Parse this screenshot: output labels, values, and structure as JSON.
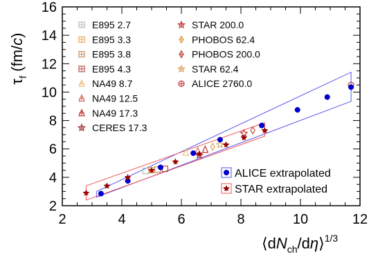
{
  "chart_data": {
    "type": "scatter",
    "title": "",
    "xlabel": "⟨dN_ch/dη⟩^(1/3)",
    "ylabel": "τ_f (fm/c)",
    "xlim": [
      2,
      12
    ],
    "ylim": [
      2,
      16
    ],
    "x_ticks": [
      "2",
      "4",
      "6",
      "8",
      "10",
      "12"
    ],
    "y_ticks": [
      "2",
      "4",
      "6",
      "8",
      "10",
      "12",
      "14",
      "16"
    ],
    "legend_top": [
      {
        "name": "E895 2.7",
        "marker": "open-square",
        "color": "#b8b8b8",
        "x": 4.8,
        "y": 4.45
      },
      {
        "name": "E895 3.3",
        "marker": "open-square",
        "color": "#e8a858",
        "x": 5.0,
        "y": 4.5
      },
      {
        "name": "E895 3.8",
        "marker": "open-square",
        "color": "#c89060",
        "x": 5.2,
        "y": 4.55
      },
      {
        "name": "E895 4.3",
        "marker": "open-square",
        "color": "#b85050",
        "x": 5.45,
        "y": 4.6
      },
      {
        "name": "NA49 8.7",
        "marker": "open-triangle",
        "color": "#f0c080",
        "x": 6.15,
        "y": 5.75
      },
      {
        "name": "NA49 12.5",
        "marker": "open-triangle",
        "color": "#d07060",
        "x": 6.55,
        "y": 5.85
      },
      {
        "name": "NA49 17.3",
        "marker": "open-triangle",
        "color": "#c03030",
        "x": 6.8,
        "y": 5.95
      },
      {
        "name": "CERES 17.3",
        "marker": "open-star",
        "color": "#a03030",
        "x": 6.6,
        "y": 5.55
      },
      {
        "name": "STAR 200.0",
        "marker": "open-star",
        "color": "#c03030",
        "x": 8.1,
        "y": 7.1
      },
      {
        "name": "PHOBOS 62.4",
        "marker": "open-diamond",
        "color": "#e0a050",
        "x": 7.05,
        "y": 6.15
      },
      {
        "name": "PHOBOS 200.0",
        "marker": "open-diamond",
        "color": "#c05040",
        "x": 8.4,
        "y": 7.3
      },
      {
        "name": "STAR 62.4",
        "marker": "open-star",
        "color": "#e0a060",
        "x": 7.3,
        "y": 6.3
      },
      {
        "name": "ALICE 2760.0",
        "marker": "open-circle",
        "color": "#c03030",
        "x": 11.7,
        "y": 10.5
      }
    ],
    "legend_bottom": [
      {
        "name": "ALICE extrapolated",
        "marker": "filled-circle",
        "color": "#0000cc"
      },
      {
        "name": "STAR extrapolated",
        "marker": "star",
        "color": "#990000"
      }
    ],
    "series": [
      {
        "name": "ALICE extrapolated",
        "color": "#0000cc",
        "band_color": "#5555ee",
        "points": [
          [
            3.3,
            2.85
          ],
          [
            4.2,
            3.75
          ],
          [
            5.3,
            4.7
          ],
          [
            6.4,
            5.7
          ],
          [
            7.3,
            6.65
          ],
          [
            8.7,
            7.65
          ],
          [
            9.9,
            8.75
          ],
          [
            10.9,
            9.65
          ],
          [
            11.7,
            10.35
          ]
        ],
        "band": [
          [
            3.15,
            3.0
          ],
          [
            3.15,
            2.6
          ],
          [
            11.7,
            9.35
          ],
          [
            11.7,
            11.4
          ]
        ]
      },
      {
        "name": "STAR extrapolated",
        "color": "#990000",
        "band_color": "#ee5555",
        "points": [
          [
            2.8,
            2.9
          ],
          [
            3.5,
            3.4
          ],
          [
            4.2,
            4.0
          ],
          [
            5.0,
            4.5
          ],
          [
            5.8,
            5.1
          ],
          [
            6.6,
            5.65
          ],
          [
            7.5,
            6.3
          ],
          [
            8.1,
            6.8
          ],
          [
            8.8,
            7.3
          ]
        ],
        "band": [
          [
            2.8,
            3.4
          ],
          [
            2.8,
            2.4
          ],
          [
            8.8,
            6.9
          ],
          [
            8.8,
            7.85
          ]
        ]
      }
    ]
  }
}
